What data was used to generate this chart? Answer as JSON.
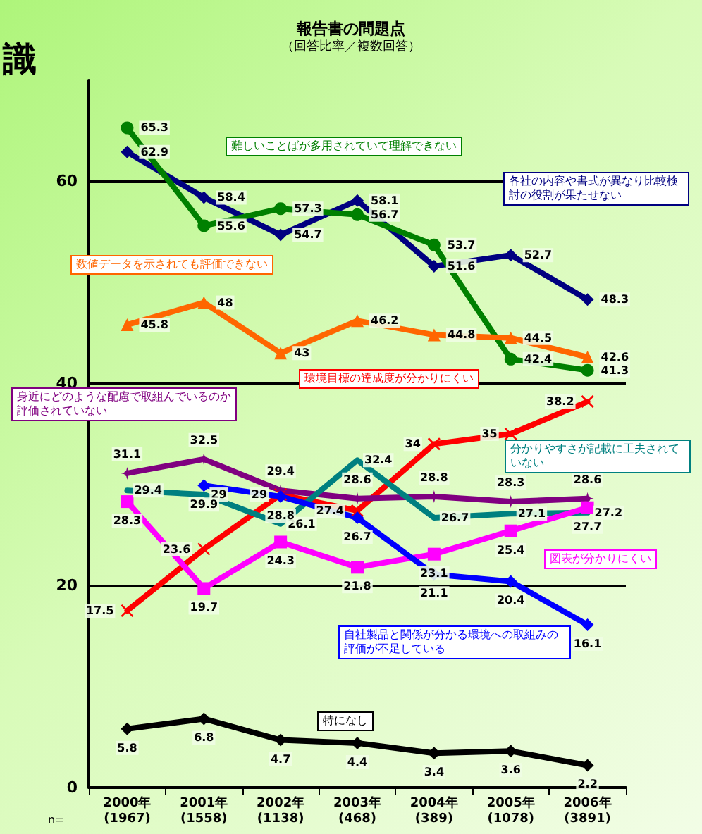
{
  "chart_data": {
    "type": "line",
    "title": "報告書の問題点",
    "subtitle": "（回答比率／複数回答）",
    "categories": [
      "2000年\n(1967)",
      "2001年\n(1558)",
      "2002年\n(1138)",
      "2003年\n(468)",
      "2004年\n(389)",
      "2005年\n(1078)",
      "2006年\n(3891)"
    ],
    "series": [
      {
        "name": "各社の内容や書式が異なり比較検討の役割が果たせない",
        "color": "#000080",
        "marker": "diamond",
        "values": [
          62.9,
          58.4,
          54.7,
          58.1,
          51.6,
          52.7,
          48.3
        ]
      },
      {
        "name": "難しいことばが多用されていて理解できない",
        "color": "#008000",
        "marker": "circle",
        "values": [
          65.3,
          55.6,
          57.3,
          56.7,
          53.7,
          42.4,
          41.3
        ]
      },
      {
        "name": "数値データを示されても評価できない",
        "color": "#ff6600",
        "marker": "triangle",
        "values": [
          45.8,
          48.0,
          43.0,
          46.2,
          44.8,
          44.5,
          42.6
        ]
      },
      {
        "name": "環境目標の達成度が分かりにくい",
        "color": "#ff0000",
        "marker": "cross",
        "values": [
          17.5,
          23.6,
          29.0,
          27.4,
          34.0,
          35.0,
          38.2
        ]
      },
      {
        "name": "身近にどのような配慮で取組んでいるのか評価されていない",
        "color": "#800080",
        "marker": "star",
        "values": [
          31.1,
          32.5,
          29.4,
          28.6,
          28.8,
          28.3,
          28.6
        ]
      },
      {
        "name": "分かりやすさが記載に工夫されていない",
        "color": "#008080",
        "marker": "none",
        "values": [
          29.4,
          29.0,
          26.1,
          32.4,
          26.7,
          27.1,
          27.2
        ]
      },
      {
        "name": "図表が分かりにくい",
        "color": "#ff00ff",
        "marker": "square",
        "values": [
          28.3,
          19.7,
          24.3,
          21.8,
          23.1,
          25.4,
          27.7
        ]
      },
      {
        "name": "自社製品と関係が分かる環境への取組みの評価が不足している",
        "color": "#0000ff",
        "marker": "diamond",
        "values": [
          null,
          29.9,
          28.8,
          26.7,
          21.1,
          20.4,
          16.1
        ]
      },
      {
        "name": "特になし",
        "color": "#000000",
        "marker": "diamond",
        "values": [
          5.8,
          6.8,
          4.7,
          4.4,
          3.4,
          3.6,
          2.2
        ]
      }
    ],
    "ylim": [
      0,
      70
    ],
    "yticks": [
      0,
      20,
      40,
      60
    ],
    "grid": "y",
    "legend": false,
    "data_labels": true,
    "annotations": [
      "識",
      "n="
    ]
  }
}
